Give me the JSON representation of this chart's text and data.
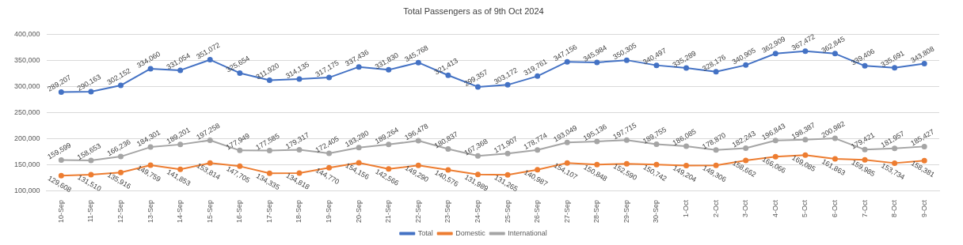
{
  "chart_data": {
    "type": "line",
    "title": "Total Passengers as of 9th Oct 2024",
    "categories": [
      "10-Sep",
      "11-Sep",
      "12-Sep",
      "13-Sep",
      "14-Sep",
      "15-Sep",
      "16-Sep",
      "17-Sep",
      "18-Sep",
      "19-Sep",
      "20-Sep",
      "21-Sep",
      "22-Sep",
      "23-Sep",
      "24-Sep",
      "25-Sep",
      "26-Sep",
      "27-Sep",
      "28-Sep",
      "29-Sep",
      "30-Sep",
      "1-Oct",
      "2-Oct",
      "3-Oct",
      "4-Oct",
      "5-Oct",
      "6-Oct",
      "7-Oct",
      "8-Oct",
      "9-Oct"
    ],
    "series": [
      {
        "name": "Total",
        "color": "#4472c4",
        "values": [
          289207,
          290163,
          302152,
          334060,
          331054,
          351072,
          325654,
          311920,
          314135,
          317175,
          337436,
          331830,
          345768,
          321413,
          299357,
          303172,
          319761,
          347156,
          345984,
          350305,
          340497,
          335289,
          328176,
          340905,
          362909,
          367472,
          362845,
          339406,
          335691,
          343808
        ],
        "value_labels": [
          "289,207",
          "290,163",
          "302,152",
          "334,060",
          "331,054",
          "351,072",
          "325,654",
          "311,920",
          "314,135",
          "317,175",
          "337,436",
          "331,830",
          "345,768",
          "321,413",
          "299,357",
          "303,172",
          "319,761",
          "347,156",
          "345,984",
          "350,305",
          "340,497",
          "335,289",
          "328,176",
          "340,905",
          "362,909",
          "367,472",
          "362,845",
          "339,406",
          "335,691",
          "343,808"
        ]
      },
      {
        "name": "Domestic",
        "color": "#ed7d31",
        "values": [
          129608,
          131510,
          135916,
          149759,
          141853,
          153814,
          147705,
          134335,
          134818,
          144770,
          154156,
          142566,
          149290,
          140576,
          131989,
          131265,
          140987,
          154107,
          150848,
          152590,
          150742,
          149204,
          149306,
          158662,
          166066,
          169085,
          161863,
          159985,
          153734,
          158381
        ],
        "value_labels": [
          "129,608",
          "131,510",
          "135,916",
          "149,759",
          "141,853",
          "153,814",
          "147,705",
          "134,335",
          "134,818",
          "144,770",
          "154,156",
          "142,566",
          "149,290",
          "140,576",
          "131,989",
          "131,265",
          "140,987",
          "154,107",
          "150,848",
          "152,590",
          "150,742",
          "149,204",
          "149,306",
          "158,662",
          "166,066",
          "169,085",
          "161,863",
          "159,985",
          "153,734",
          "158,381"
        ]
      },
      {
        "name": "International",
        "color": "#a5a5a5",
        "values": [
          159599,
          158653,
          166236,
          184301,
          189201,
          197258,
          177949,
          177585,
          179317,
          172405,
          183280,
          189264,
          196478,
          180837,
          167368,
          171907,
          178774,
          193049,
          195136,
          197715,
          189755,
          186085,
          178870,
          182243,
          196843,
          198387,
          200982,
          179421,
          181957,
          185427
        ],
        "value_labels": [
          "159,599",
          "158,653",
          "166,236",
          "184,301",
          "189,201",
          "197,258",
          "177,949",
          "177,585",
          "179,317",
          "172,405",
          "183,280",
          "189,264",
          "196,478",
          "180,837",
          "167,368",
          "171,907",
          "178,774",
          "193,049",
          "195,136",
          "197,715",
          "189,755",
          "186,085",
          "178,870",
          "182,243",
          "196,843",
          "198,387",
          "200,982",
          "179,421",
          "181,957",
          "185,427"
        ]
      }
    ],
    "ylim": [
      100000,
      400000
    ],
    "yticks": [
      {
        "value": 100000,
        "label": "100,000"
      },
      {
        "value": 150000,
        "label": "150,000"
      },
      {
        "value": 200000,
        "label": "200,000"
      },
      {
        "value": 250000,
        "label": "250,000"
      },
      {
        "value": 300000,
        "label": "300,000"
      },
      {
        "value": 350000,
        "label": "350,000"
      },
      {
        "value": 400000,
        "label": "400,000"
      }
    ],
    "grid": "y",
    "legend": "bottom",
    "marker": "circle",
    "line_style": "solid"
  }
}
